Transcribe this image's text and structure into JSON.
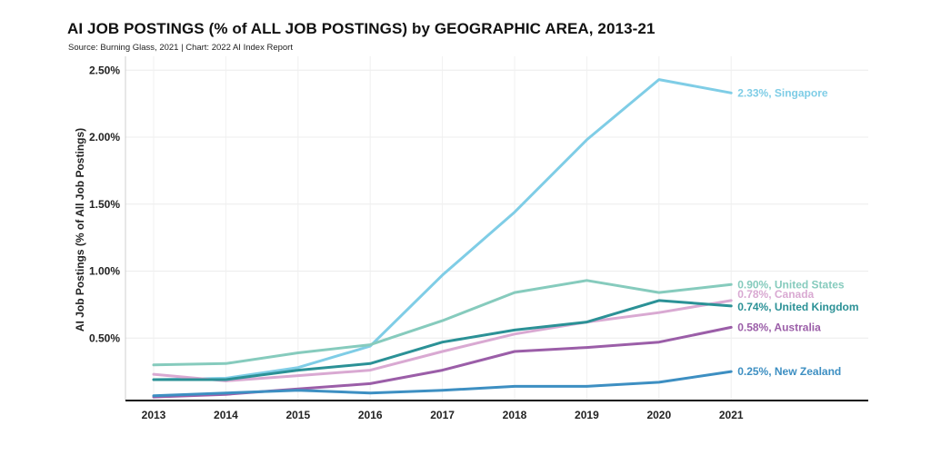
{
  "chart_data": {
    "type": "line",
    "title": "AI JOB POSTINGS (% of ALL JOB POSTINGS) by GEOGRAPHIC AREA, 2013-21",
    "subtitle": "Source: Burning Glass, 2021 | Chart: 2022 AI Index Report",
    "ylabel": "AI Job Postings (% of All Job Postings)",
    "xlabel": "",
    "x": [
      2013,
      2014,
      2015,
      2016,
      2017,
      2018,
      2019,
      2020,
      2021
    ],
    "x_ticks": [
      "2013",
      "2014",
      "2015",
      "2016",
      "2017",
      "2018",
      "2019",
      "2020",
      "2021"
    ],
    "ylim": [
      0,
      2.6
    ],
    "y_ticks": [
      0.5,
      1.0,
      1.5,
      2.0,
      2.5
    ],
    "y_tick_labels": [
      "0.50%",
      "1.00%",
      "1.50%",
      "2.00%",
      "2.50%"
    ],
    "grid": true,
    "series": [
      {
        "name": "Singapore",
        "label": "2.33%, Singapore",
        "color": "#7fcde6",
        "values": [
          0.19,
          0.2,
          0.28,
          0.44,
          0.97,
          1.44,
          1.98,
          2.43,
          2.33
        ]
      },
      {
        "name": "United States",
        "label": "0.90%, United States",
        "color": "#86cbbd",
        "values": [
          0.3,
          0.31,
          0.39,
          0.45,
          0.63,
          0.84,
          0.93,
          0.84,
          0.9
        ]
      },
      {
        "name": "Canada",
        "label": "0.78%, Canada",
        "color": "#d9a9d2",
        "values": [
          0.23,
          0.18,
          0.22,
          0.26,
          0.4,
          0.53,
          0.62,
          0.69,
          0.78
        ]
      },
      {
        "name": "United Kingdom",
        "label": "0.74%, United Kingdom",
        "color": "#2b9196",
        "values": [
          0.19,
          0.19,
          0.26,
          0.31,
          0.47,
          0.56,
          0.62,
          0.78,
          0.74
        ]
      },
      {
        "name": "Australia",
        "label": "0.58%, Australia",
        "color": "#9b5ea8",
        "values": [
          0.06,
          0.08,
          0.12,
          0.16,
          0.26,
          0.4,
          0.43,
          0.47,
          0.58
        ]
      },
      {
        "name": "New Zealand",
        "label": "0.25%, New Zealand",
        "color": "#3d8fc2",
        "values": [
          0.07,
          0.09,
          0.11,
          0.09,
          0.11,
          0.14,
          0.14,
          0.17,
          0.25
        ]
      }
    ]
  }
}
